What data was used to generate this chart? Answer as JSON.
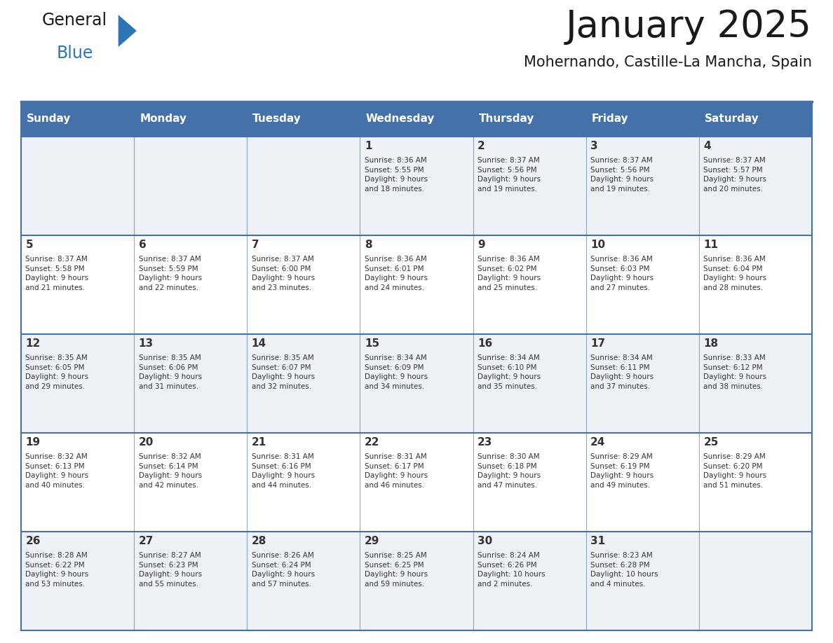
{
  "title": "January 2025",
  "subtitle": "Mohernando, Castille-La Mancha, Spain",
  "days_of_week": [
    "Sunday",
    "Monday",
    "Tuesday",
    "Wednesday",
    "Thursday",
    "Friday",
    "Saturday"
  ],
  "header_bg": "#4472A8",
  "header_text": "#FFFFFF",
  "row_bg_odd": "#EEF2F7",
  "row_bg_even": "#FFFFFF",
  "cell_text_color": "#333333",
  "border_color": "#4472A8",
  "title_color": "#1a1a1a",
  "subtitle_color": "#1a1a1a",
  "general_color": "#1a1a1a",
  "blue_color": "#2E75B6",
  "weeks": [
    {
      "days": [
        {
          "day": "",
          "info": ""
        },
        {
          "day": "",
          "info": ""
        },
        {
          "day": "",
          "info": ""
        },
        {
          "day": "1",
          "info": "Sunrise: 8:36 AM\nSunset: 5:55 PM\nDaylight: 9 hours\nand 18 minutes."
        },
        {
          "day": "2",
          "info": "Sunrise: 8:37 AM\nSunset: 5:56 PM\nDaylight: 9 hours\nand 19 minutes."
        },
        {
          "day": "3",
          "info": "Sunrise: 8:37 AM\nSunset: 5:56 PM\nDaylight: 9 hours\nand 19 minutes."
        },
        {
          "day": "4",
          "info": "Sunrise: 8:37 AM\nSunset: 5:57 PM\nDaylight: 9 hours\nand 20 minutes."
        }
      ]
    },
    {
      "days": [
        {
          "day": "5",
          "info": "Sunrise: 8:37 AM\nSunset: 5:58 PM\nDaylight: 9 hours\nand 21 minutes."
        },
        {
          "day": "6",
          "info": "Sunrise: 8:37 AM\nSunset: 5:59 PM\nDaylight: 9 hours\nand 22 minutes."
        },
        {
          "day": "7",
          "info": "Sunrise: 8:37 AM\nSunset: 6:00 PM\nDaylight: 9 hours\nand 23 minutes."
        },
        {
          "day": "8",
          "info": "Sunrise: 8:36 AM\nSunset: 6:01 PM\nDaylight: 9 hours\nand 24 minutes."
        },
        {
          "day": "9",
          "info": "Sunrise: 8:36 AM\nSunset: 6:02 PM\nDaylight: 9 hours\nand 25 minutes."
        },
        {
          "day": "10",
          "info": "Sunrise: 8:36 AM\nSunset: 6:03 PM\nDaylight: 9 hours\nand 27 minutes."
        },
        {
          "day": "11",
          "info": "Sunrise: 8:36 AM\nSunset: 6:04 PM\nDaylight: 9 hours\nand 28 minutes."
        }
      ]
    },
    {
      "days": [
        {
          "day": "12",
          "info": "Sunrise: 8:35 AM\nSunset: 6:05 PM\nDaylight: 9 hours\nand 29 minutes."
        },
        {
          "day": "13",
          "info": "Sunrise: 8:35 AM\nSunset: 6:06 PM\nDaylight: 9 hours\nand 31 minutes."
        },
        {
          "day": "14",
          "info": "Sunrise: 8:35 AM\nSunset: 6:07 PM\nDaylight: 9 hours\nand 32 minutes."
        },
        {
          "day": "15",
          "info": "Sunrise: 8:34 AM\nSunset: 6:09 PM\nDaylight: 9 hours\nand 34 minutes."
        },
        {
          "day": "16",
          "info": "Sunrise: 8:34 AM\nSunset: 6:10 PM\nDaylight: 9 hours\nand 35 minutes."
        },
        {
          "day": "17",
          "info": "Sunrise: 8:34 AM\nSunset: 6:11 PM\nDaylight: 9 hours\nand 37 minutes."
        },
        {
          "day": "18",
          "info": "Sunrise: 8:33 AM\nSunset: 6:12 PM\nDaylight: 9 hours\nand 38 minutes."
        }
      ]
    },
    {
      "days": [
        {
          "day": "19",
          "info": "Sunrise: 8:32 AM\nSunset: 6:13 PM\nDaylight: 9 hours\nand 40 minutes."
        },
        {
          "day": "20",
          "info": "Sunrise: 8:32 AM\nSunset: 6:14 PM\nDaylight: 9 hours\nand 42 minutes."
        },
        {
          "day": "21",
          "info": "Sunrise: 8:31 AM\nSunset: 6:16 PM\nDaylight: 9 hours\nand 44 minutes."
        },
        {
          "day": "22",
          "info": "Sunrise: 8:31 AM\nSunset: 6:17 PM\nDaylight: 9 hours\nand 46 minutes."
        },
        {
          "day": "23",
          "info": "Sunrise: 8:30 AM\nSunset: 6:18 PM\nDaylight: 9 hours\nand 47 minutes."
        },
        {
          "day": "24",
          "info": "Sunrise: 8:29 AM\nSunset: 6:19 PM\nDaylight: 9 hours\nand 49 minutes."
        },
        {
          "day": "25",
          "info": "Sunrise: 8:29 AM\nSunset: 6:20 PM\nDaylight: 9 hours\nand 51 minutes."
        }
      ]
    },
    {
      "days": [
        {
          "day": "26",
          "info": "Sunrise: 8:28 AM\nSunset: 6:22 PM\nDaylight: 9 hours\nand 53 minutes."
        },
        {
          "day": "27",
          "info": "Sunrise: 8:27 AM\nSunset: 6:23 PM\nDaylight: 9 hours\nand 55 minutes."
        },
        {
          "day": "28",
          "info": "Sunrise: 8:26 AM\nSunset: 6:24 PM\nDaylight: 9 hours\nand 57 minutes."
        },
        {
          "day": "29",
          "info": "Sunrise: 8:25 AM\nSunset: 6:25 PM\nDaylight: 9 hours\nand 59 minutes."
        },
        {
          "day": "30",
          "info": "Sunrise: 8:24 AM\nSunset: 6:26 PM\nDaylight: 10 hours\nand 2 minutes."
        },
        {
          "day": "31",
          "info": "Sunrise: 8:23 AM\nSunset: 6:28 PM\nDaylight: 10 hours\nand 4 minutes."
        },
        {
          "day": "",
          "info": ""
        }
      ]
    }
  ]
}
